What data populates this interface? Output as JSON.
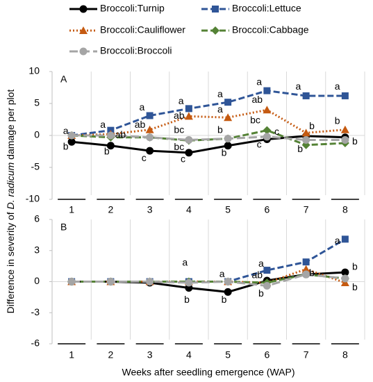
{
  "chart_data": [
    {
      "type": "line",
      "panel_label": "A",
      "y_label_parts": [
        "Difference in severity of ",
        "D. radicum",
        " damage per plot"
      ],
      "x": [
        1,
        2,
        3,
        4,
        5,
        6,
        7,
        8
      ],
      "xlim": [
        0.5,
        8.5
      ],
      "xticks": [
        1,
        2,
        3,
        4,
        5,
        6,
        7,
        8
      ],
      "ylim": [
        -10,
        10
      ],
      "yticks": [
        -10,
        -5,
        0,
        5,
        10
      ],
      "series": [
        {
          "name": "Broccoli:Turnip",
          "color": "#000000",
          "marker": "circle",
          "dash": "solid",
          "values": [
            -1,
            -1.6,
            -2.4,
            -2.7,
            -1.6,
            -0.6,
            -0.1,
            -0.3
          ]
        },
        {
          "name": "Broccoli:Lettuce",
          "color": "#2f5597",
          "marker": "square",
          "dash": "dashed",
          "values": [
            0,
            0.8,
            3.1,
            4.2,
            5.2,
            7.0,
            6.2,
            6.2
          ]
        },
        {
          "name": "Broccoli:Cauliflower",
          "color": "#c55a11",
          "marker": "triangle",
          "dash": "dotted",
          "values": [
            0,
            0.2,
            0.9,
            3.0,
            2.8,
            4.0,
            0.4,
            0.9
          ]
        },
        {
          "name": "Broccoli:Cabbage",
          "color": "#548235",
          "marker": "diamond",
          "dash": "dashed",
          "values": [
            0,
            -0.3,
            -0.3,
            -0.8,
            -0.5,
            0.8,
            -1.5,
            -1.2
          ]
        },
        {
          "name": "Broccoli:Broccoli",
          "color": "#a5a5a5",
          "marker": "circle",
          "dash": "longdash",
          "values": [
            0,
            0,
            -0.3,
            -0.7,
            -0.5,
            -0.2,
            -0.7,
            -0.7
          ]
        }
      ],
      "annotations": [
        {
          "text": "a",
          "x": 0.85,
          "y": 0.6
        },
        {
          "text": "b",
          "x": 0.85,
          "y": -1.8
        },
        {
          "text": "a",
          "x": 1.8,
          "y": 1.6
        },
        {
          "text": "ab",
          "x": 2.25,
          "y": 0
        },
        {
          "text": "b",
          "x": 1.9,
          "y": -2.6
        },
        {
          "text": "a",
          "x": 2.8,
          "y": 4.3
        },
        {
          "text": "ab",
          "x": 2.75,
          "y": 1.6
        },
        {
          "text": "c",
          "x": 2.85,
          "y": -3.6
        },
        {
          "text": "a",
          "x": 3.8,
          "y": 5.3
        },
        {
          "text": "ab",
          "x": 3.75,
          "y": 3.0
        },
        {
          "text": "bc",
          "x": 3.75,
          "y": 0.8
        },
        {
          "text": "bc",
          "x": 3.75,
          "y": -1.9
        },
        {
          "text": "c",
          "x": 3.85,
          "y": -3.8
        },
        {
          "text": "a",
          "x": 4.8,
          "y": 6.4
        },
        {
          "text": "a",
          "x": 4.8,
          "y": 4.0
        },
        {
          "text": "b",
          "x": 4.8,
          "y": 0.8
        },
        {
          "text": "b",
          "x": 4.9,
          "y": -2.8
        },
        {
          "text": "a",
          "x": 5.8,
          "y": 8.3
        },
        {
          "text": "ab",
          "x": 5.75,
          "y": 5.5
        },
        {
          "text": "bc",
          "x": 5.7,
          "y": 2.3
        },
        {
          "text": "c",
          "x": 6.25,
          "y": 0.5
        },
        {
          "text": "c",
          "x": 5.8,
          "y": -1.5
        },
        {
          "text": "a",
          "x": 6.8,
          "y": 7.6
        },
        {
          "text": "b",
          "x": 7.15,
          "y": 1.4
        },
        {
          "text": "b",
          "x": 6.85,
          "y": -2.2
        },
        {
          "text": "a",
          "x": 7.8,
          "y": 7.6
        },
        {
          "text": "b",
          "x": 7.8,
          "y": 2.2
        },
        {
          "text": "b",
          "x": 8.25,
          "y": -1.0
        }
      ]
    },
    {
      "type": "line",
      "panel_label": "B",
      "x_label": "Weeks after seedling emergence (WAP)",
      "x": [
        1,
        2,
        3,
        4,
        5,
        6,
        7,
        8
      ],
      "xlim": [
        0.5,
        8.5
      ],
      "xticks": [
        1,
        2,
        3,
        4,
        5,
        6,
        7,
        8
      ],
      "ylim": [
        -6,
        6
      ],
      "yticks": [
        -6,
        -3,
        0,
        3,
        6
      ],
      "series": [
        {
          "color": "#000000",
          "marker": "circle",
          "dash": "solid",
          "values": [
            0,
            0,
            -0.1,
            -0.6,
            -1.0,
            0.1,
            0.7,
            0.9
          ]
        },
        {
          "color": "#2f5597",
          "marker": "square",
          "dash": "dashed",
          "values": [
            0,
            0,
            0,
            0,
            0,
            1.1,
            1.9,
            4.1
          ]
        },
        {
          "color": "#c55a11",
          "marker": "triangle",
          "dash": "dotted",
          "values": [
            0,
            0,
            0,
            0,
            0,
            -0.1,
            1.2,
            -0.1
          ]
        },
        {
          "color": "#548235",
          "marker": "diamond",
          "dash": "dashed",
          "values": [
            0,
            0,
            0,
            0,
            0,
            -0.1,
            0.7,
            0.3
          ]
        },
        {
          "color": "#a5a5a5",
          "marker": "circle",
          "dash": "longdash",
          "values": [
            0,
            0,
            0,
            -0.1,
            0,
            -0.4,
            0.7,
            0.3
          ]
        }
      ],
      "annotations": [
        {
          "text": "a",
          "x": 3.9,
          "y": 1.8
        },
        {
          "text": "b",
          "x": 3.95,
          "y": -1.8
        },
        {
          "text": "a",
          "x": 4.85,
          "y": 0.7
        },
        {
          "text": "b",
          "x": 4.9,
          "y": -1.8
        },
        {
          "text": "a",
          "x": 5.85,
          "y": 1.7
        },
        {
          "text": "ab",
          "x": 5.75,
          "y": 0.6
        },
        {
          "text": "b",
          "x": 5.85,
          "y": -1.2
        },
        {
          "text": "b",
          "x": 7.15,
          "y": 0.8
        },
        {
          "text": "a",
          "x": 7.8,
          "y": 3.9
        },
        {
          "text": "b",
          "x": 8.25,
          "y": 1.4
        },
        {
          "text": "b",
          "x": 8.25,
          "y": -0.6
        }
      ]
    }
  ]
}
